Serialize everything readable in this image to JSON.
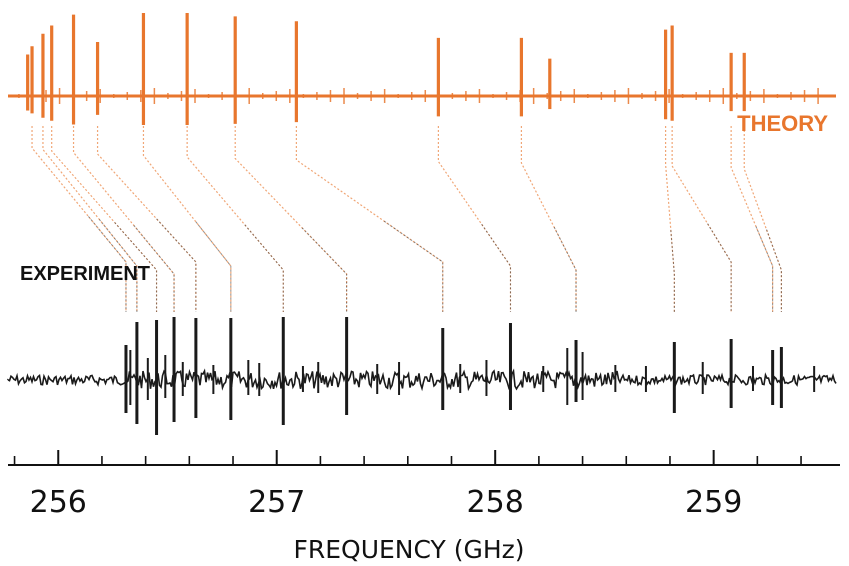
{
  "chart_data": {
    "type": "line",
    "title": "",
    "xlabel": "FREQUENCY (GHz)",
    "ylabel": "",
    "xlim": [
      255.77,
      259.56
    ],
    "x_tick_labels": [
      "256",
      "257",
      "258",
      "259"
    ],
    "x_major_ticks": [
      256,
      257,
      258,
      259
    ],
    "x_minor_ticks": [
      255.8,
      256.2,
      256.4,
      256.6,
      256.8,
      257.2,
      257.4,
      257.6,
      257.8,
      258.2,
      258.4,
      258.6,
      258.8,
      259.2,
      259.4
    ],
    "grid": false,
    "theory": {
      "label": "THEORY",
      "color": "#E8762D",
      "lines": [
        {
          "x": 255.86,
          "h": 0.5
        },
        {
          "x": 255.88,
          "h": 0.6
        },
        {
          "x": 255.93,
          "h": 0.75
        },
        {
          "x": 255.97,
          "h": 0.85
        },
        {
          "x": 256.07,
          "h": 0.98
        },
        {
          "x": 256.18,
          "h": 0.65
        },
        {
          "x": 256.39,
          "h": 1.0
        },
        {
          "x": 256.59,
          "h": 1.0
        },
        {
          "x": 256.81,
          "h": 0.96
        },
        {
          "x": 257.09,
          "h": 0.9
        },
        {
          "x": 257.74,
          "h": 0.7
        },
        {
          "x": 258.12,
          "h": 0.7
        },
        {
          "x": 258.25,
          "h": 0.45
        },
        {
          "x": 258.78,
          "h": 0.8
        },
        {
          "x": 258.81,
          "h": 0.85
        },
        {
          "x": 259.08,
          "h": 0.52
        },
        {
          "x": 259.14,
          "h": 0.52
        }
      ]
    },
    "experiment": {
      "label": "EXPERIMENT",
      "color": "#1A1A1A",
      "lines": [
        {
          "x": 256.31,
          "up": 0.35,
          "down": 0.33
        },
        {
          "x": 256.36,
          "up": 0.58,
          "down": 0.44
        },
        {
          "x": 256.45,
          "up": 0.6,
          "down": 0.55
        },
        {
          "x": 256.53,
          "up": 0.63,
          "down": 0.42
        },
        {
          "x": 256.63,
          "up": 0.62,
          "down": 0.38
        },
        {
          "x": 256.79,
          "up": 0.62,
          "down": 0.4
        },
        {
          "x": 257.03,
          "up": 0.63,
          "down": 0.45
        },
        {
          "x": 257.32,
          "up": 0.63,
          "down": 0.35
        },
        {
          "x": 257.76,
          "up": 0.52,
          "down": 0.3
        },
        {
          "x": 258.07,
          "up": 0.57,
          "down": 0.3
        },
        {
          "x": 258.37,
          "up": 0.4,
          "down": 0.22
        },
        {
          "x": 258.82,
          "up": 0.38,
          "down": 0.33
        },
        {
          "x": 259.08,
          "up": 0.41,
          "down": 0.28
        },
        {
          "x": 259.27,
          "up": 0.3,
          "down": 0.25
        },
        {
          "x": 259.31,
          "up": 0.33,
          "down": 0.28
        }
      ],
      "minor_lines": [
        {
          "x": 256.33,
          "up": 0.3,
          "down": 0.25
        },
        {
          "x": 256.41,
          "up": 0.22,
          "down": 0.2
        },
        {
          "x": 256.49,
          "up": 0.25,
          "down": 0.18
        },
        {
          "x": 256.57,
          "up": 0.18,
          "down": 0.16
        },
        {
          "x": 256.71,
          "up": 0.15,
          "down": 0.14
        },
        {
          "x": 256.87,
          "up": 0.2,
          "down": 0.15
        },
        {
          "x": 256.92,
          "up": 0.17,
          "down": 0.16
        },
        {
          "x": 257.12,
          "up": 0.14,
          "down": 0.12
        },
        {
          "x": 257.19,
          "up": 0.18,
          "down": 0.13
        },
        {
          "x": 257.46,
          "up": 0.16,
          "down": 0.14
        },
        {
          "x": 257.56,
          "up": 0.18,
          "down": 0.15
        },
        {
          "x": 257.84,
          "up": 0.16,
          "down": 0.13
        },
        {
          "x": 257.96,
          "up": 0.2,
          "down": 0.16
        },
        {
          "x": 258.22,
          "up": 0.14,
          "down": 0.12
        },
        {
          "x": 258.33,
          "up": 0.32,
          "down": 0.25
        },
        {
          "x": 258.4,
          "up": 0.28,
          "down": 0.2
        },
        {
          "x": 258.55,
          "up": 0.15,
          "down": 0.12
        },
        {
          "x": 258.69,
          "up": 0.14,
          "down": 0.12
        },
        {
          "x": 258.95,
          "up": 0.18,
          "down": 0.14
        },
        {
          "x": 259.18,
          "up": 0.14,
          "down": 0.11
        },
        {
          "x": 259.46,
          "up": 0.14,
          "down": 0.12
        }
      ]
    },
    "correspondence": [
      {
        "theory_x": 255.88,
        "exp_x": 256.31
      },
      {
        "theory_x": 255.93,
        "exp_x": 256.36
      },
      {
        "theory_x": 255.97,
        "exp_x": 256.45
      },
      {
        "theory_x": 256.07,
        "exp_x": 256.53
      },
      {
        "theory_x": 256.18,
        "exp_x": 256.63
      },
      {
        "theory_x": 256.39,
        "exp_x": 256.79
      },
      {
        "theory_x": 256.59,
        "exp_x": 257.03
      },
      {
        "theory_x": 256.81,
        "exp_x": 257.32
      },
      {
        "theory_x": 257.09,
        "exp_x": 257.76
      },
      {
        "theory_x": 257.74,
        "exp_x": 258.07
      },
      {
        "theory_x": 258.12,
        "exp_x": 258.37
      },
      {
        "theory_x": 258.78,
        "exp_x": 258.82
      },
      {
        "theory_x": 258.81,
        "exp_x": 259.08
      },
      {
        "theory_x": 259.08,
        "exp_x": 259.27
      },
      {
        "theory_x": 259.14,
        "exp_x": 259.31
      }
    ]
  }
}
